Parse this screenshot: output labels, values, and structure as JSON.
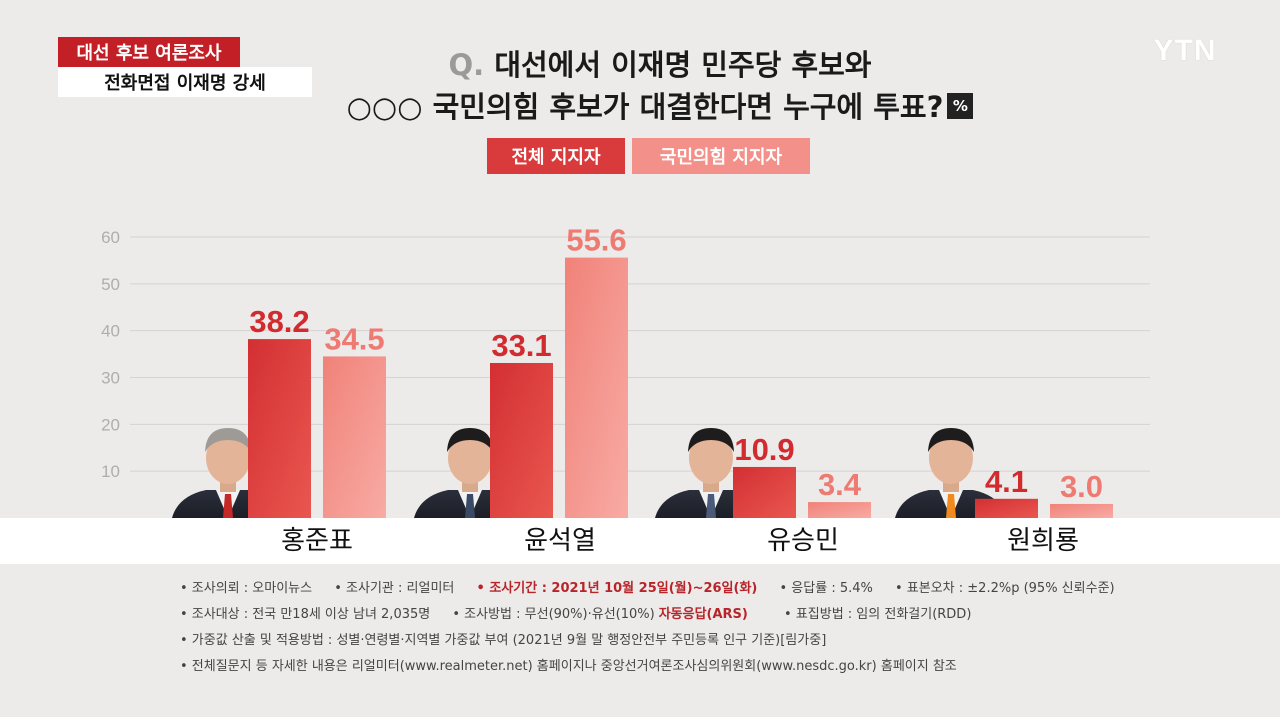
{
  "header": {
    "tag_top": "대선 후보 여론조사",
    "tag_bottom": "전화면접 이재명 강세",
    "logo": "YTN"
  },
  "question": {
    "prefix": "Q.",
    "line1": "대선에서 이재명 민주당 후보와",
    "line2": "○○○ 국민의힘 후보가 대결한다면 누구에 투표?",
    "unit": "%"
  },
  "colors": {
    "series_all": "#d93a3c",
    "series_ppp": "#f4908a",
    "tag_red": "#c21f26"
  },
  "chart_data": {
    "type": "bar",
    "categories": [
      "홍준표",
      "윤석열",
      "유승민",
      "원희룡"
    ],
    "series": [
      {
        "name": "전체 지지자",
        "values": [
          38.2,
          33.1,
          10.9,
          4.1
        ]
      },
      {
        "name": "국민의힘 지지자",
        "values": [
          34.5,
          55.6,
          3.4,
          3.0
        ]
      }
    ],
    "yticks": [
      10,
      20,
      30,
      40,
      50,
      60
    ],
    "ylim": [
      0,
      60
    ],
    "grid": true,
    "legend_placement": "top-center"
  },
  "notes": {
    "row1": {
      "a": "• 조사의뢰 : 오마이뉴스",
      "b": "• 조사기관 : 리얼미터",
      "c": "• 조사기간 : 2021년 10월 25일(월)~26일(화)",
      "d": "• 응답률 : 5.4%",
      "e": "• 표본오차 : ±2.2%p (95% 신뢰수준)"
    },
    "row2": {
      "a": "• 조사대상 : 전국 만18세 이상 남녀 2,035명",
      "b": "• 조사방법 : 무선(90%)·유선(10%)",
      "b_hl": "자동응답(ARS)",
      "c": "• 표집방법 : 임의 전화걸기(RDD)"
    },
    "row3": "• 가중값 산출 및 적용방법 : 성별·연령별·지역별 가중값 부여 (2021년 9월 말 행정안전부 주민등록 인구 기준)[림가중]",
    "row4": "• 전체질문지 등 자세한 내용은 리얼미터(www.realmeter.net) 홈페이지나 중앙선거여론조사심의위원회(www.nesdc.go.kr) 홈페이지 참조"
  }
}
